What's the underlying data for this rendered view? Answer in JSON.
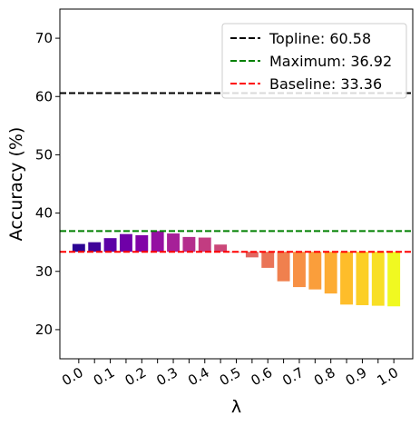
{
  "chart_data": {
    "type": "bar",
    "xlabel": "λ",
    "ylabel": "Accuracy (%)",
    "ylim": [
      15,
      75
    ],
    "yticks": [
      20,
      30,
      40,
      50,
      60,
      70
    ],
    "xtick_labels": [
      "0.0",
      "0.1",
      "0.2",
      "0.3",
      "0.4",
      "0.5",
      "0.6",
      "0.7",
      "0.8",
      "0.9",
      "1.0"
    ],
    "categories": [
      0.0,
      0.05,
      0.1,
      0.15,
      0.2,
      0.25,
      0.3,
      0.35,
      0.4,
      0.45,
      0.5,
      0.55,
      0.6,
      0.65,
      0.7,
      0.75,
      0.8,
      0.85,
      0.9,
      0.95,
      1.0
    ],
    "values": [
      34.7,
      35.0,
      35.7,
      36.4,
      36.2,
      36.92,
      36.5,
      35.9,
      35.8,
      34.6,
      33.36,
      32.4,
      30.6,
      28.3,
      27.3,
      26.9,
      26.2,
      24.3,
      24.2,
      24.1,
      24.0
    ],
    "bar_colors": [
      "#2c0594",
      "#400399",
      "#5c01a6",
      "#6f00a8",
      "#8104a7",
      "#9410a2",
      "#a62098",
      "#b42e8d",
      "#c23c81",
      "#cb4779",
      "#da5b69",
      "#e26660",
      "#ea7457",
      "#f0804e",
      "#f79044",
      "#fa9e3b",
      "#fdac33",
      "#febd2a",
      "#fccf25",
      "#f8df25",
      "#f0f921"
    ],
    "baseline": 33.36,
    "reference_lines": [
      {
        "label": "Topline: 60.58",
        "value": 60.58,
        "color": "#000000"
      },
      {
        "label": "Maximum: 36.92",
        "value": 36.92,
        "color": "#008000"
      },
      {
        "label": "Baseline: 33.36",
        "value": 33.36,
        "color": "#ff0000"
      }
    ],
    "legend_position": "top-right",
    "grid": false
  }
}
